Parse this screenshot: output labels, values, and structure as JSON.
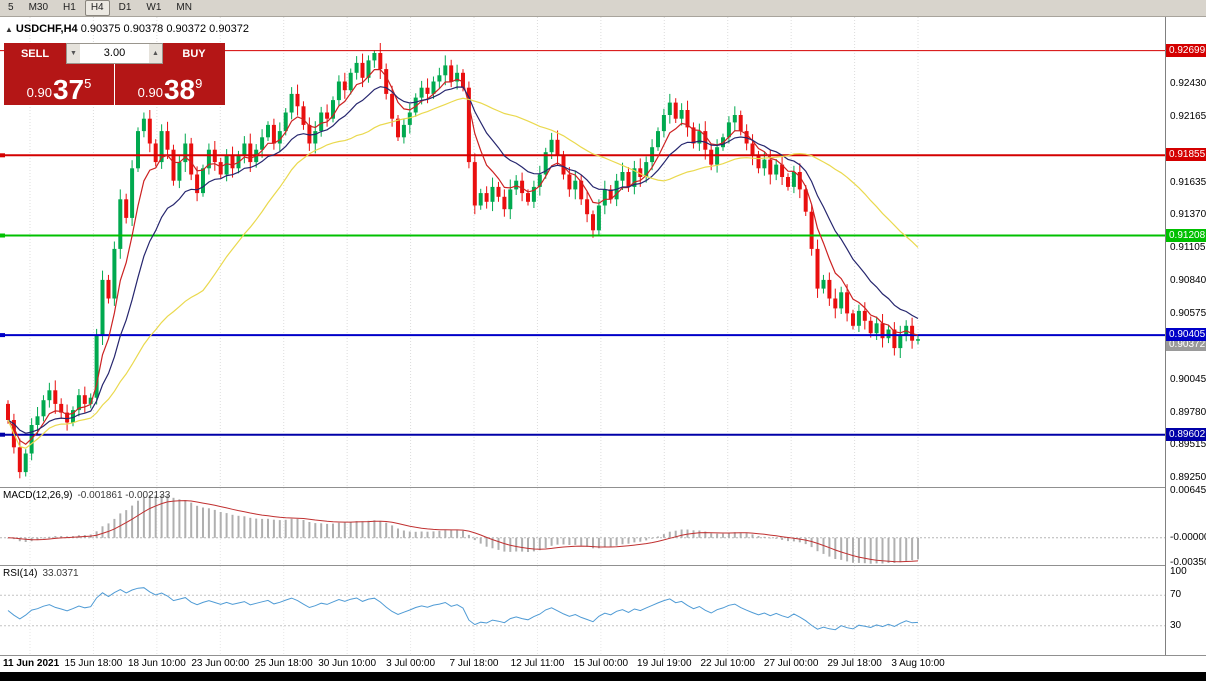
{
  "toolbar": {
    "timeframes": [
      "5",
      "M30",
      "H1",
      "H4",
      "D1",
      "W1",
      "MN"
    ],
    "active": "H4"
  },
  "chart": {
    "collapse_icon": "▲",
    "symbol_period": "USDCHF,H4",
    "ohlc": "0.90375 0.90378 0.90372 0.90372"
  },
  "trade_panel": {
    "sell_label": "SELL",
    "buy_label": "BUY",
    "volume": "3.00",
    "spin_down": "▼",
    "spin_up": "▲",
    "sell_price": {
      "prefix": "0.90",
      "big": "37",
      "sup": "5"
    },
    "buy_price": {
      "prefix": "0.90",
      "big": "38",
      "sup": "9"
    }
  },
  "price_axis": {
    "ticks": [
      "0.92430",
      "0.92165",
      "0.91635",
      "0.91370",
      "0.91105",
      "0.90840",
      "0.90575",
      "0.90310",
      "0.90045",
      "0.89780",
      "0.89515",
      "0.89250"
    ]
  },
  "time_axis": {
    "labels": [
      "11 Jun 2021",
      "15 Jun 18:00",
      "18 Jun 10:00",
      "23 Jun 00:00",
      "25 Jun 18:00",
      "30 Jun 10:00",
      "3 Jul 00:00",
      "7 Jul 18:00",
      "12 Jul 11:00",
      "15 Jul 00:00",
      "19 Jul 19:00",
      "22 Jul 10:00",
      "27 Jul 00:00",
      "29 Jul 18:00",
      "3 Aug 10:00"
    ]
  },
  "macd_panel": {
    "name": "MACD(12,26,9)",
    "values": "-0.001861 -0.002133",
    "axis_labels": [
      "0.006451",
      "-0.00000",
      "-0.00350"
    ]
  },
  "rsi_panel": {
    "name": "RSI(14)",
    "value": "33.0371",
    "axis_labels": [
      "100",
      "70",
      "30"
    ]
  },
  "chart_data": {
    "type": "candlestick",
    "symbol": "USDCHF",
    "timeframe": "H4",
    "price_range": [
      0.8918,
      0.9297
    ],
    "up_color": "#00a94f",
    "down_color": "#e90f0f",
    "first_open": 0.8985,
    "closes": [
      0.8972,
      0.895,
      0.893,
      0.8945,
      0.8968,
      0.8975,
      0.8988,
      0.8996,
      0.8985,
      0.8978,
      0.897,
      0.898,
      0.8992,
      0.8985,
      0.899,
      0.904,
      0.9085,
      0.907,
      0.911,
      0.915,
      0.9135,
      0.9175,
      0.9205,
      0.9215,
      0.9195,
      0.918,
      0.9205,
      0.919,
      0.9165,
      0.918,
      0.9195,
      0.917,
      0.9155,
      0.9175,
      0.919,
      0.918,
      0.917,
      0.9185,
      0.9175,
      0.9185,
      0.9195,
      0.918,
      0.919,
      0.92,
      0.921,
      0.9195,
      0.9205,
      0.922,
      0.9235,
      0.9225,
      0.921,
      0.9195,
      0.9205,
      0.922,
      0.9215,
      0.923,
      0.9245,
      0.9238,
      0.9252,
      0.926,
      0.9248,
      0.9262,
      0.9268,
      0.9255,
      0.9235,
      0.9215,
      0.92,
      0.921,
      0.922,
      0.9232,
      0.924,
      0.9235,
      0.9245,
      0.925,
      0.9258,
      0.9245,
      0.9252,
      0.924,
      0.918,
      0.9145,
      0.9155,
      0.9148,
      0.916,
      0.9152,
      0.9142,
      0.9158,
      0.9165,
      0.9155,
      0.9148,
      0.916,
      0.917,
      0.9188,
      0.9198,
      0.9185,
      0.917,
      0.9158,
      0.9165,
      0.915,
      0.9138,
      0.9125,
      0.9145,
      0.9158,
      0.915,
      0.9165,
      0.9172,
      0.916,
      0.9175,
      0.9168,
      0.918,
      0.9192,
      0.9205,
      0.9218,
      0.9228,
      0.9215,
      0.9222,
      0.9208,
      0.9195,
      0.9205,
      0.919,
      0.9178,
      0.9192,
      0.92,
      0.9212,
      0.9218,
      0.9205,
      0.9195,
      0.9185,
      0.9175,
      0.9182,
      0.917,
      0.9178,
      0.9168,
      0.916,
      0.9172,
      0.9158,
      0.914,
      0.911,
      0.9078,
      0.9085,
      0.907,
      0.9062,
      0.9075,
      0.9058,
      0.9048,
      0.906,
      0.9052,
      0.9042,
      0.905,
      0.9038,
      0.9045,
      0.903,
      0.904,
      0.9048,
      0.9036,
      0.90372
    ],
    "wick_overrides": {
      "2": {
        "low": 0.8925
      },
      "62": {
        "high": 0.92702
      },
      "99": {
        "low": 0.9119
      },
      "150": {
        "low": 0.9024
      }
    },
    "moving_averages": [
      {
        "period": 6,
        "method": "ema",
        "color": "#cc2222"
      },
      {
        "period": 14,
        "method": "ema",
        "color": "#26266e"
      },
      {
        "period": 34,
        "method": "sma",
        "color": "#ead94e"
      }
    ],
    "levels": [
      {
        "price": 0.92699,
        "label": "0.92699",
        "color": "#d40000",
        "width": 1
      },
      {
        "price": 0.91855,
        "label": "0.91855",
        "color": "#d40000",
        "width": 2
      },
      {
        "price": 0.91208,
        "label": "0.91208",
        "color": "#00c000",
        "width": 2
      },
      {
        "price": 0.90405,
        "label": "0.90405",
        "color": "#0000c8",
        "width": 2
      },
      {
        "price": 0.89602,
        "label": "0.89602",
        "color": "#0000a8",
        "width": 2
      }
    ],
    "current_price": {
      "label": "0.90372",
      "price": 0.90372,
      "color": "#9a9a9a"
    },
    "macd": {
      "fast": 12,
      "slow": 26,
      "signal_period": 9,
      "main": -0.001861,
      "signal": -0.002133,
      "histogram_color": "#b0b0b0",
      "signal_color": "#c03030"
    },
    "rsi": {
      "period": 14,
      "value": 33.0371,
      "levels": [
        70,
        30
      ],
      "color": "#4f9bd5"
    }
  }
}
